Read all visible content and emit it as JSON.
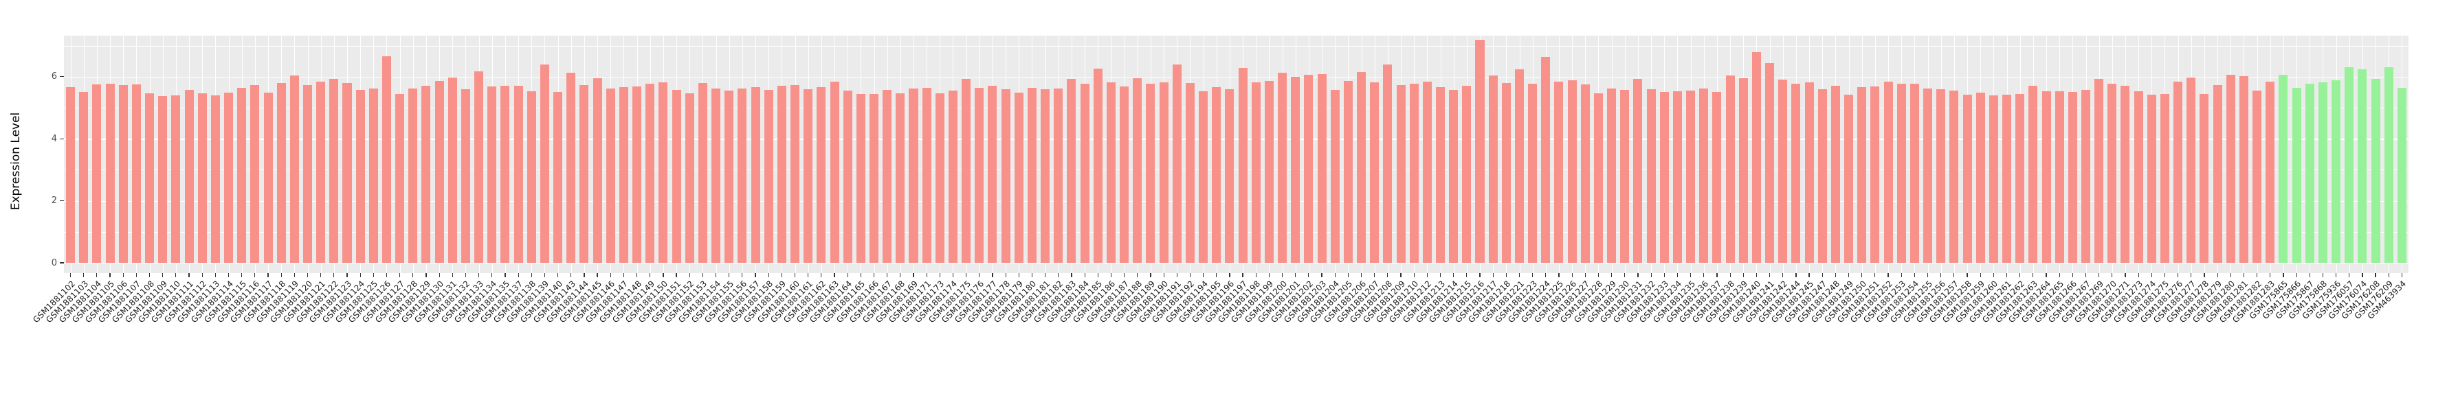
{
  "chart_data": {
    "type": "bar",
    "title": "",
    "xlabel": "",
    "ylabel": "Expression Level",
    "yticks": [
      0,
      2,
      4,
      6
    ],
    "ylim": [
      -0.33,
      7.32
    ],
    "grid": true,
    "legend_position": "none",
    "panel_bg": "#EBEBEB",
    "gridline_color": "#FFFFFF",
    "axis_text_color": "#4D4D4D",
    "groups": [
      {
        "name": "pink",
        "color": "#F9918B",
        "count": 168
      },
      {
        "name": "green",
        "color": "#97F199",
        "count": 10
      }
    ],
    "categories": [
      "GSM1881102",
      "GSM1881103",
      "GSM1881104",
      "GSM1881105",
      "GSM1881106",
      "GSM1881107",
      "GSM1881108",
      "GSM1881109",
      "GSM1881110",
      "GSM1881111",
      "GSM1881112",
      "GSM1881113",
      "GSM1881114",
      "GSM1881115",
      "GSM1881116",
      "GSM1881117",
      "GSM1881118",
      "GSM1881119",
      "GSM1881120",
      "GSM1881121",
      "GSM1881122",
      "GSM1881123",
      "GSM1881124",
      "GSM1881125",
      "GSM1881126",
      "GSM1881127",
      "GSM1881128",
      "GSM1881129",
      "GSM1881130",
      "GSM1881131",
      "GSM1881132",
      "GSM1881133",
      "GSM1881134",
      "GSM1881135",
      "GSM1881137",
      "GSM1881138",
      "GSM1881139",
      "GSM1881140",
      "GSM1881143",
      "GSM1881144",
      "GSM1881145",
      "GSM1881146",
      "GSM1881147",
      "GSM1881148",
      "GSM1881149",
      "GSM1881150",
      "GSM1881151",
      "GSM1881152",
      "GSM1881153",
      "GSM1881154",
      "GSM1881155",
      "GSM1881156",
      "GSM1881157",
      "GSM1881158",
      "GSM1881159",
      "GSM1881160",
      "GSM1881161",
      "GSM1881162",
      "GSM1881163",
      "GSM1881164",
      "GSM1881165",
      "GSM1881166",
      "GSM1881167",
      "GSM1881168",
      "GSM1881169",
      "GSM1881171",
      "GSM1881173",
      "GSM1881174",
      "GSM1881175",
      "GSM1881176",
      "GSM1881177",
      "GSM1881178",
      "GSM1881179",
      "GSM1881180",
      "GSM1881181",
      "GSM1881182",
      "GSM1881183",
      "GSM1881184",
      "GSM1881185",
      "GSM1881186",
      "GSM1881187",
      "GSM1881188",
      "GSM1881189",
      "GSM1881190",
      "GSM1881191",
      "GSM1881192",
      "GSM1881194",
      "GSM1881195",
      "GSM1881196",
      "GSM1881197",
      "GSM1881198",
      "GSM1881199",
      "GSM1881200",
      "GSM1881201",
      "GSM1881202",
      "GSM1881203",
      "GSM1881204",
      "GSM1881205",
      "GSM1881206",
      "GSM1881207",
      "GSM1881208",
      "GSM1881209",
      "GSM1881210",
      "GSM1881212",
      "GSM1881213",
      "GSM1881214",
      "GSM1881215",
      "GSM1881216",
      "GSM1881217",
      "GSM1881218",
      "GSM1881221",
      "GSM1881223",
      "GSM1881224",
      "GSM1881225",
      "GSM1881226",
      "GSM1881227",
      "GSM1881228",
      "GSM1881229",
      "GSM1881230",
      "GSM1881231",
      "GSM1881232",
      "GSM1881233",
      "GSM1881234",
      "GSM1881235",
      "GSM1881236",
      "GSM1881237",
      "GSM1881238",
      "GSM1881239",
      "GSM1881240",
      "GSM1881241",
      "GSM1881242",
      "GSM1881244",
      "GSM1881245",
      "GSM1881247",
      "GSM1881248",
      "GSM1881249",
      "GSM1881250",
      "GSM1881251",
      "GSM1881252",
      "GSM1881253",
      "GSM1881254",
      "GSM1881255",
      "GSM1881256",
      "GSM1881257",
      "GSM1881258",
      "GSM1881259",
      "GSM1881260",
      "GSM1881261",
      "GSM1881262",
      "GSM1881263",
      "GSM1881264",
      "GSM1881265",
      "GSM1881266",
      "GSM1881267",
      "GSM1881269",
      "GSM1881270",
      "GSM1881271",
      "GSM1881273",
      "GSM1881274",
      "GSM1881275",
      "GSM1881276",
      "GSM1881277",
      "GSM1881278",
      "GSM1881279",
      "GSM1881280",
      "GSM1881281",
      "GSM1881282",
      "GSM1881283",
      "GSM175865",
      "GSM175866",
      "GSM175867",
      "GSM175868",
      "GSM175936",
      "GSM176057",
      "GSM176074",
      "GSM176208",
      "GSM176209",
      "GSM463934"
    ],
    "values": [
      5.66,
      5.5,
      5.76,
      5.78,
      5.72,
      5.75,
      5.46,
      5.37,
      5.4,
      5.57,
      5.47,
      5.39,
      5.49,
      5.65,
      5.74,
      5.48,
      5.79,
      6.03,
      5.74,
      5.83,
      5.92,
      5.79,
      5.57,
      5.61,
      6.66,
      5.45,
      5.62,
      5.71,
      5.87,
      5.98,
      5.6,
      6.18,
      5.68,
      5.7,
      5.7,
      5.53,
      6.39,
      5.5,
      6.13,
      5.74,
      5.95,
      5.61,
      5.67,
      5.69,
      5.78,
      5.81,
      5.57,
      5.46,
      5.8,
      5.63,
      5.56,
      5.63,
      5.66,
      5.57,
      5.7,
      5.72,
      5.6,
      5.67,
      5.83,
      5.55,
      5.45,
      5.45,
      5.57,
      5.47,
      5.61,
      5.64,
      5.46,
      5.56,
      5.94,
      5.65,
      5.7,
      5.6,
      5.48,
      5.65,
      5.6,
      5.61,
      5.92,
      5.78,
      6.27,
      5.81,
      5.69,
      5.95,
      5.77,
      5.82,
      6.4,
      5.79,
      5.52,
      5.67,
      5.59,
      6.29,
      5.82,
      5.86,
      6.13,
      5.99,
      6.06,
      6.09,
      5.57,
      5.86,
      6.14,
      5.81,
      6.4,
      5.74,
      5.77,
      5.83,
      5.67,
      5.57,
      5.71,
      7.19,
      6.04,
      5.79,
      6.23,
      5.77,
      6.64,
      5.83,
      5.88,
      5.76,
      5.47,
      5.61,
      5.57,
      5.92,
      5.6,
      5.5,
      5.52,
      5.55,
      5.62,
      5.5,
      6.04,
      5.95,
      6.79,
      6.43,
      5.91,
      5.78,
      5.81,
      5.6,
      5.71,
      5.42,
      5.66,
      5.69,
      5.85,
      5.77,
      5.77,
      5.62,
      5.59,
      5.56,
      5.42,
      5.49,
      5.4,
      5.42,
      5.44,
      5.71,
      5.53,
      5.54,
      5.5,
      5.58,
      5.92,
      5.77,
      5.71,
      5.53,
      5.42,
      5.44,
      5.83,
      5.98,
      5.45,
      5.73,
      6.06,
      6.02,
      5.55,
      5.85,
      6.06,
      5.65,
      5.77,
      5.82,
      5.88,
      6.3,
      6.25,
      5.94,
      6.31,
      5.65
    ]
  }
}
